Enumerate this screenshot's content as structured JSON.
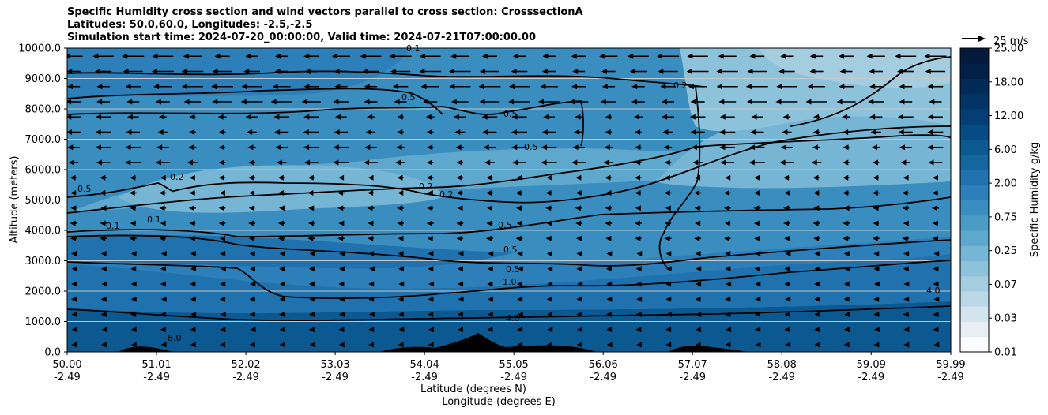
{
  "header": {
    "title_lines": [
      "Specific Humidity cross section and wind vectors parallel to cross section: CrosssectionA",
      "Latitudes: 50.0,60.0, Longitudes: -2.5,-2.5",
      "Simulation start time: 2024-07-20_00:00:00, Valid time: 2024-07-21T07:00:00.00"
    ]
  },
  "chart_data": {
    "type": "heatmap",
    "title": "Specific Humidity cross section and wind vectors parallel to cross section: CrosssectionA",
    "xlabel": "Latitude (degrees N)",
    "xlabel2": "Longitude (degrees E)",
    "ylabel": "Altitude (meters)",
    "ylim": [
      0,
      10000
    ],
    "xlim": [
      50.0,
      59.99
    ],
    "x_ticks": [
      {
        "lat": "50.00",
        "lon": "-2.49",
        "value": 50.0
      },
      {
        "lat": "51.01",
        "lon": "-2.49",
        "value": 51.01
      },
      {
        "lat": "52.02",
        "lon": "-2.49",
        "value": 52.02
      },
      {
        "lat": "53.03",
        "lon": "-2.49",
        "value": 53.03
      },
      {
        "lat": "54.04",
        "lon": "-2.49",
        "value": 54.04
      },
      {
        "lat": "55.05",
        "lon": "-2.49",
        "value": 55.05
      },
      {
        "lat": "56.06",
        "lon": "-2.49",
        "value": 56.06
      },
      {
        "lat": "57.07",
        "lon": "-2.49",
        "value": 57.07
      },
      {
        "lat": "58.08",
        "lon": "-2.49",
        "value": 58.08
      },
      {
        "lat": "59.09",
        "lon": "-2.49",
        "value": 59.09
      },
      {
        "lat": "59.99",
        "lon": "-2.49",
        "value": 59.99
      }
    ],
    "y_ticks": [
      "0.0",
      "1000.0",
      "2000.0",
      "3000.0",
      "4000.0",
      "5000.0",
      "6000.0",
      "7000.0",
      "8000.0",
      "9000.0",
      "10000.0"
    ],
    "grid": "horizontal",
    "colorbar": {
      "label": "Specific Humidity g/kg",
      "tick_labels": [
        "0.01",
        "0.03",
        "0.07",
        "0.25",
        "0.75",
        "2.00",
        "6.00",
        "12.00",
        "18.00",
        "25.00"
      ],
      "colormap": "PuBu",
      "colors": [
        "#fdfbfd",
        "#e9eef4",
        "#d4e4ef",
        "#bcd8e7",
        "#a4cde0",
        "#8dc2db",
        "#76b5d4",
        "#5fa8cd",
        "#4a9bc6",
        "#3a8dbf",
        "#2c7fb8",
        "#1f72ad",
        "#15659f",
        "#0c5891",
        "#064b83",
        "#033f74",
        "#023465",
        "#022a56",
        "#022047",
        "#031a3d"
      ]
    },
    "contour_labels": [
      "0.1",
      "0.2",
      "0.5",
      "1.0",
      "4.0",
      "8.0"
    ],
    "wind_reference": {
      "label": "25 m/s",
      "speed": 25
    },
    "wind_direction": "southward (toward lower latitude) at most levels",
    "terrain": "black silhouettes near 50.7-51.4, 53.9-56.0, 56.9-57.5"
  }
}
